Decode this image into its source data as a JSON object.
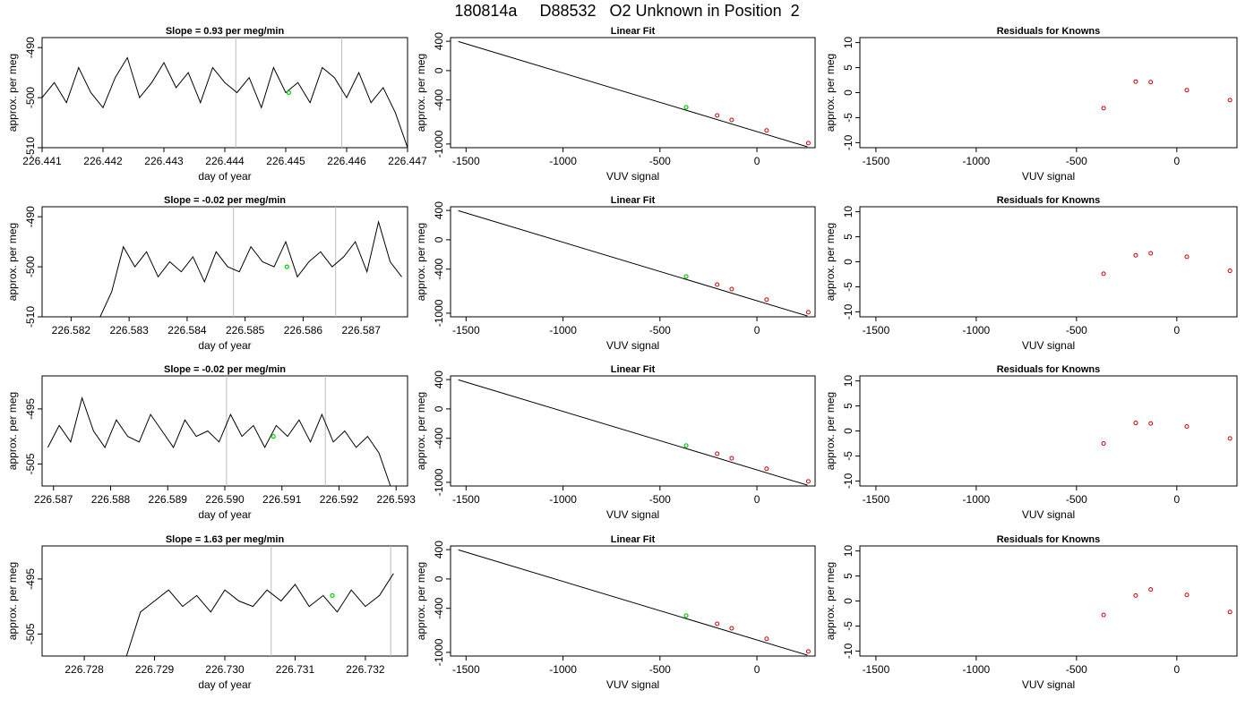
{
  "title": "180814a     D88532   O2 Unknown in Position  2",
  "colors": {
    "trace": "#000000",
    "known_marker": "#cc0000",
    "unknown_marker": "#00cc00",
    "separator": "#bbbbbb",
    "frame": "#000000"
  },
  "chart_data": [
    {
      "type": "line",
      "row": 1,
      "panel": "time-series",
      "title": "Slope =  0.93  per meg/min",
      "xlabel": "day of year",
      "ylabel": "approx. per meg",
      "xlim": [
        226.441,
        226.447
      ],
      "ylim": [
        -510,
        -488
      ],
      "x_ticks": [
        "226.441",
        "226.442",
        "226.443",
        "226.444",
        "226.445",
        "226.446",
        "226.447"
      ],
      "y_ticks": [
        "-490",
        "-500",
        "-510"
      ],
      "separators_x": [
        226.44418,
        226.44592
      ],
      "series": [
        {
          "x": [
            226.441,
            226.4412,
            226.4414,
            226.4416,
            226.4418,
            226.442,
            226.4422,
            226.4424,
            226.4426,
            226.4428,
            226.443,
            226.4432,
            226.4434,
            226.4436,
            226.4438,
            226.444,
            226.4442,
            226.4444,
            226.4446,
            226.4448,
            226.445,
            226.4452,
            226.4454,
            226.4456,
            226.4458,
            226.446,
            226.4462,
            226.4464,
            226.4466,
            226.4468,
            226.447
          ],
          "y": [
            -500,
            -497,
            -501,
            -494,
            -499,
            -502,
            -496,
            -492,
            -500,
            -497,
            -493,
            -498,
            -495,
            -501,
            -494,
            -497,
            -499,
            -496,
            -502,
            -494,
            -499,
            -497,
            -501,
            -494,
            -496,
            -500,
            -495,
            -501,
            -498,
            -503,
            -510
          ]
        }
      ],
      "unknown_point": {
        "x": 226.44505,
        "y": -499
      }
    },
    {
      "type": "scatter",
      "row": 1,
      "panel": "linear-fit",
      "title": "Linear Fit",
      "xlabel": "VUV signal",
      "ylabel": "approx. per meg",
      "xlim": [
        -1580,
        300
      ],
      "ylim": [
        -1050,
        450
      ],
      "x_ticks": [
        "-1500",
        "-1000",
        "-500",
        "0"
      ],
      "y_ticks": [
        "400",
        "0",
        "-400",
        "-1000"
      ],
      "fit_line": {
        "x": [
          -1540,
          260
        ],
        "y": [
          397,
          -1038
        ]
      },
      "knowns": {
        "x": [
          -205,
          -130,
          50,
          265
        ],
        "y": [
          -611,
          -672,
          -815,
          -987
        ]
      },
      "unknown_point": {
        "x": -365,
        "y": -499
      }
    },
    {
      "type": "scatter",
      "row": 1,
      "panel": "residuals",
      "title": "Residuals for Knowns",
      "xlabel": "VUV signal",
      "ylabel": "approx. per meg",
      "xlim": [
        -1580,
        300
      ],
      "ylim": [
        -11,
        11
      ],
      "x_ticks": [
        "-1500",
        "-1000",
        "-500",
        "0"
      ],
      "y_ticks": [
        "10",
        "5",
        "0",
        "-5",
        "-10"
      ],
      "points": {
        "x": [
          -365,
          -205,
          -130,
          50,
          265
        ],
        "y": [
          -3.1,
          2.2,
          2.1,
          0.5,
          -1.5
        ]
      }
    },
    {
      "type": "line",
      "row": 2,
      "panel": "time-series",
      "title": "Slope =  -0.02  per meg/min",
      "xlabel": "day of year",
      "ylabel": "approx. per meg",
      "xlim": [
        226.5815,
        226.5878
      ],
      "ylim": [
        -510,
        -488
      ],
      "x_ticks": [
        "226.582",
        "226.583",
        "226.584",
        "226.585",
        "226.586",
        "226.587"
      ],
      "y_ticks": [
        "-490",
        "-500",
        "-510"
      ],
      "separators_x": [
        226.5848,
        226.58656
      ],
      "series": [
        {
          "x": [
            226.5825,
            226.5827,
            226.5829,
            226.5831,
            226.5833,
            226.5835,
            226.5837,
            226.5839,
            226.5841,
            226.5843,
            226.5845,
            226.5847,
            226.5849,
            226.5851,
            226.5853,
            226.5855,
            226.5857,
            226.5859,
            226.5861,
            226.5863,
            226.5865,
            226.5867,
            226.5869,
            226.5871,
            226.5873,
            226.5875,
            226.5877
          ],
          "y": [
            -510,
            -505,
            -496,
            -500,
            -497,
            -502,
            -499,
            -501,
            -498,
            -503,
            -497,
            -500,
            -501,
            -496,
            -499,
            -500,
            -495,
            -502,
            -499,
            -497,
            -500,
            -498,
            -495,
            -501,
            -491,
            -499,
            -502
          ]
        }
      ],
      "unknown_point": {
        "x": 226.58572,
        "y": -500
      }
    },
    {
      "type": "scatter",
      "row": 2,
      "panel": "linear-fit",
      "title": "Linear Fit",
      "xlabel": "VUV signal",
      "ylabel": "approx. per meg",
      "xlim": [
        -1580,
        300
      ],
      "ylim": [
        -1050,
        450
      ],
      "x_ticks": [
        "-1500",
        "-1000",
        "-500",
        "0"
      ],
      "y_ticks": [
        "400",
        "0",
        "-400",
        "-1000"
      ],
      "fit_line": {
        "x": [
          -1540,
          260
        ],
        "y": [
          397,
          -1038
        ]
      },
      "knowns": {
        "x": [
          -205,
          -130,
          50,
          265
        ],
        "y": [
          -611,
          -672,
          -815,
          -987
        ]
      },
      "unknown_point": {
        "x": -365,
        "y": -499
      }
    },
    {
      "type": "scatter",
      "row": 2,
      "panel": "residuals",
      "title": "Residuals for Knowns",
      "xlabel": "VUV signal",
      "ylabel": "approx. per meg",
      "xlim": [
        -1580,
        300
      ],
      "ylim": [
        -11,
        11
      ],
      "x_ticks": [
        "-1500",
        "-1000",
        "-500",
        "0"
      ],
      "y_ticks": [
        "10",
        "5",
        "0",
        "-5",
        "-10"
      ],
      "points": {
        "x": [
          -365,
          -205,
          -130,
          50,
          265
        ],
        "y": [
          -2.4,
          1.3,
          1.7,
          1.0,
          -1.8
        ]
      }
    },
    {
      "type": "line",
      "row": 3,
      "panel": "time-series",
      "title": "Slope =  -0.02  per meg/min",
      "xlabel": "day of year",
      "ylabel": "approx. per meg",
      "xlim": [
        226.5868,
        226.5932
      ],
      "ylim": [
        -509,
        -489
      ],
      "x_ticks": [
        "226.587",
        "226.588",
        "226.589",
        "226.590",
        "226.591",
        "226.592",
        "226.593"
      ],
      "y_ticks": [
        "-495",
        "-505"
      ],
      "separators_x": [
        226.59003,
        226.59176
      ],
      "series": [
        {
          "x": [
            226.5869,
            226.5871,
            226.5873,
            226.5875,
            226.5877,
            226.5879,
            226.5881,
            226.5883,
            226.5885,
            226.5887,
            226.5889,
            226.5891,
            226.5893,
            226.5895,
            226.5897,
            226.5899,
            226.5901,
            226.5903,
            226.5905,
            226.5907,
            226.5909,
            226.5911,
            226.5913,
            226.5915,
            226.5917,
            226.5919,
            226.5921,
            226.5923,
            226.5925,
            226.5927,
            226.5929
          ],
          "y": [
            -502,
            -498,
            -501,
            -493,
            -499,
            -502,
            -497,
            -500,
            -501,
            -496,
            -499,
            -502,
            -497,
            -500,
            -499,
            -501,
            -496,
            -500,
            -498,
            -502,
            -498,
            -500,
            -497,
            -501,
            -496,
            -501,
            -499,
            -502,
            -500,
            -503,
            -509
          ]
        }
      ],
      "unknown_point": {
        "x": 226.59085,
        "y": -500
      }
    },
    {
      "type": "scatter",
      "row": 3,
      "panel": "linear-fit",
      "title": "Linear Fit",
      "xlabel": "VUV signal",
      "ylabel": "approx. per meg",
      "xlim": [
        -1580,
        300
      ],
      "ylim": [
        -1050,
        450
      ],
      "x_ticks": [
        "-1500",
        "-1000",
        "-500",
        "0"
      ],
      "y_ticks": [
        "400",
        "0",
        "-400",
        "-1000"
      ],
      "fit_line": {
        "x": [
          -1540,
          260
        ],
        "y": [
          397,
          -1038
        ]
      },
      "knowns": {
        "x": [
          -205,
          -130,
          50,
          265
        ],
        "y": [
          -611,
          -672,
          -815,
          -987
        ]
      },
      "unknown_point": {
        "x": -365,
        "y": -499
      }
    },
    {
      "type": "scatter",
      "row": 3,
      "panel": "residuals",
      "title": "Residuals for Knowns",
      "xlabel": "VUV signal",
      "ylabel": "approx. per meg",
      "xlim": [
        -1580,
        300
      ],
      "ylim": [
        -11,
        11
      ],
      "x_ticks": [
        "-1500",
        "-1000",
        "-500",
        "0"
      ],
      "y_ticks": [
        "10",
        "5",
        "0",
        "-5",
        "-10"
      ],
      "points": {
        "x": [
          -365,
          -205,
          -130,
          50,
          265
        ],
        "y": [
          -2.5,
          1.6,
          1.5,
          0.9,
          -1.5
        ]
      }
    },
    {
      "type": "line",
      "row": 4,
      "panel": "time-series",
      "title": "Slope =  1.63  per meg/min",
      "xlabel": "day of year",
      "ylabel": "approx. per meg",
      "xlim": [
        226.7274,
        226.7326
      ],
      "ylim": [
        -509,
        -489
      ],
      "x_ticks": [
        "226.728",
        "226.729",
        "226.730",
        "226.731",
        "226.732"
      ],
      "y_ticks": [
        "-495",
        "-505"
      ],
      "separators_x": [
        226.73066,
        226.73236
      ],
      "series": [
        {
          "x": [
            226.7286,
            226.7288,
            226.729,
            226.7292,
            226.7294,
            226.7296,
            226.7298,
            226.73,
            226.7302,
            226.7304,
            226.7306,
            226.7308,
            226.731,
            226.7312,
            226.7314,
            226.7316,
            226.7318,
            226.732,
            226.7322,
            226.7324
          ],
          "y": [
            -509,
            -501,
            -499,
            -497,
            -500,
            -498,
            -501,
            -497,
            -499,
            -500,
            -497,
            -499,
            -496,
            -500,
            -498,
            -501,
            -497,
            -500,
            -498,
            -494
          ]
        }
      ],
      "unknown_point": {
        "x": 226.73153,
        "y": -498
      }
    },
    {
      "type": "scatter",
      "row": 4,
      "panel": "linear-fit",
      "title": "Linear Fit",
      "xlabel": "VUV signal",
      "ylabel": "approx. per meg",
      "xlim": [
        -1580,
        300
      ],
      "ylim": [
        -1050,
        450
      ],
      "x_ticks": [
        "-1500",
        "-1000",
        "-500",
        "0"
      ],
      "y_ticks": [
        "400",
        "0",
        "-400",
        "-1000"
      ],
      "fit_line": {
        "x": [
          -1540,
          260
        ],
        "y": [
          397,
          -1038
        ]
      },
      "knowns": {
        "x": [
          -205,
          -130,
          50,
          265
        ],
        "y": [
          -611,
          -672,
          -815,
          -987
        ]
      },
      "unknown_point": {
        "x": -365,
        "y": -499
      }
    },
    {
      "type": "scatter",
      "row": 4,
      "panel": "residuals",
      "title": "Residuals for Knowns",
      "xlabel": "VUV signal",
      "ylabel": "approx. per meg",
      "xlim": [
        -1580,
        300
      ],
      "ylim": [
        -11,
        11
      ],
      "x_ticks": [
        "-1500",
        "-1000",
        "-500",
        "0"
      ],
      "y_ticks": [
        "10",
        "5",
        "0",
        "-5",
        "-10"
      ],
      "points": {
        "x": [
          -365,
          -205,
          -130,
          50,
          265
        ],
        "y": [
          -2.8,
          1.1,
          2.3,
          1.2,
          -2.2
        ]
      }
    }
  ]
}
